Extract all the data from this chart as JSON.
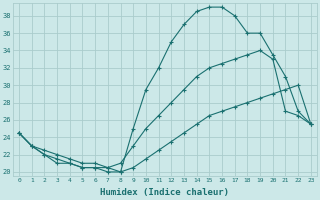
{
  "xlabel": "Humidex (Indice chaleur)",
  "bg_color": "#cce8e8",
  "grid_color": "#aacccc",
  "line_color": "#1a7070",
  "xlim": [
    -0.5,
    23.5
  ],
  "ylim": [
    19.5,
    39.5
  ],
  "xticks": [
    0,
    1,
    2,
    3,
    4,
    5,
    6,
    7,
    8,
    9,
    10,
    11,
    12,
    13,
    14,
    15,
    16,
    17,
    18,
    19,
    20,
    21,
    22,
    23
  ],
  "yticks": [
    20,
    22,
    24,
    26,
    28,
    30,
    32,
    34,
    36,
    38
  ],
  "curve1_x": [
    0,
    1,
    2,
    3,
    4,
    5,
    6,
    7,
    8,
    9,
    10,
    11,
    12,
    13,
    14,
    15,
    16,
    17,
    18,
    19,
    20,
    21,
    22,
    23
  ],
  "curve1_y": [
    24.5,
    23,
    22,
    21,
    21,
    20.5,
    20.5,
    20,
    20,
    25,
    29.5,
    32,
    35,
    37,
    38.5,
    39,
    39,
    38,
    36,
    36,
    33.5,
    31,
    27,
    25.5
  ],
  "curve2_x": [
    0,
    1,
    2,
    3,
    4,
    5,
    6,
    7,
    8,
    9,
    10,
    11,
    12,
    13,
    14,
    15,
    16,
    17,
    18,
    19,
    20,
    21,
    22,
    23
  ],
  "curve2_y": [
    24.5,
    23,
    22,
    21.5,
    21,
    20.5,
    20.5,
    20.5,
    20,
    20.5,
    21.5,
    22.5,
    23.5,
    24.5,
    25.5,
    26.5,
    27,
    27.5,
    28,
    28.5,
    29,
    29.5,
    30,
    25.5
  ],
  "curve3_x": [
    0,
    1,
    2,
    3,
    4,
    5,
    6,
    7,
    8,
    9,
    10,
    11,
    12,
    13,
    14,
    15,
    16,
    17,
    18,
    19,
    20,
    21,
    22,
    23
  ],
  "curve3_y": [
    24.5,
    23,
    22.5,
    22,
    21.5,
    21,
    21,
    20.5,
    21,
    23,
    25,
    26.5,
    28,
    29.5,
    31,
    32,
    32.5,
    33,
    33.5,
    34,
    33,
    27,
    26.5,
    25.5
  ]
}
